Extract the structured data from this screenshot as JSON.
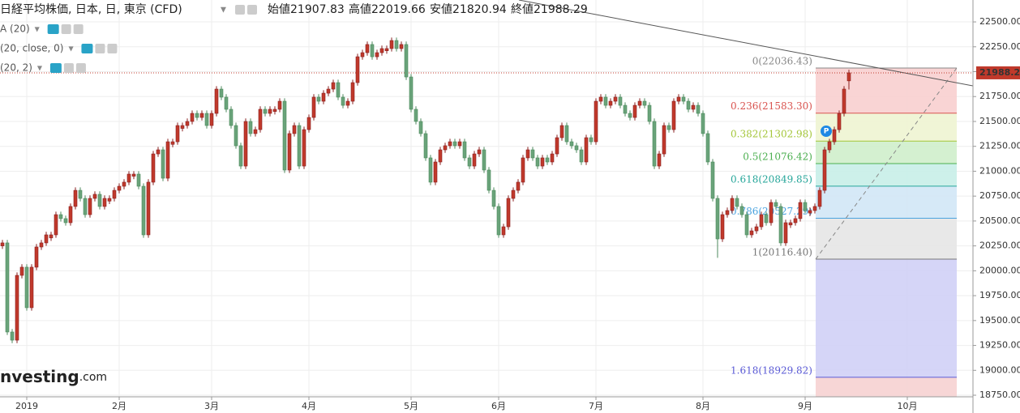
{
  "chart_data": {
    "type": "candlestick",
    "title": "日経平均株価, 日本, 日, 東京 (CFD)",
    "ohlc_labels": [
      "始値",
      "高値",
      "安値",
      "終値"
    ],
    "indicators": [
      "A (20)",
      "(20, close, 0)",
      "(20, 2)"
    ],
    "logo": [
      "nvesting",
      ".com"
    ],
    "up_color": "#c0392b",
    "down_color": "#6aa37a",
    "xlim": [
      -0.5,
      199.5
    ],
    "xticks": [
      {
        "value": 5,
        "label": "2019"
      },
      {
        "value": 24,
        "label": "2月"
      },
      {
        "value": 43,
        "label": "3月"
      },
      {
        "value": 63,
        "label": "4月"
      },
      {
        "value": 84,
        "label": "5月"
      },
      {
        "value": 102,
        "label": "6月"
      },
      {
        "value": 122,
        "label": "7月"
      },
      {
        "value": 144,
        "label": "8月"
      },
      {
        "value": 165,
        "label": "9月"
      },
      {
        "value": 186,
        "label": "10月"
      }
    ],
    "ylim": [
      18734,
      22720
    ],
    "yticks": [
      {
        "value": 18750,
        "label": "18750.00"
      },
      {
        "value": 19000,
        "label": "19000.00"
      },
      {
        "value": 19250,
        "label": "19250.00"
      },
      {
        "value": 19500,
        "label": "19500.00"
      },
      {
        "value": 19750,
        "label": "19750.00"
      },
      {
        "value": 20000,
        "label": "20000.00"
      },
      {
        "value": 20250,
        "label": "20250.00"
      },
      {
        "value": 20500,
        "label": "20500.00"
      },
      {
        "value": 20750,
        "label": "20750.00"
      },
      {
        "value": 21000,
        "label": "21000.00"
      },
      {
        "value": 21250,
        "label": "21250.00"
      },
      {
        "value": 21500,
        "label": "21500.00"
      },
      {
        "value": 21750,
        "label": "21750.00"
      },
      {
        "value": 22000,
        "label": "22000.00"
      },
      {
        "value": 22250,
        "label": "22250.00"
      },
      {
        "value": 22500,
        "label": "22500.00"
      }
    ],
    "grid": true,
    "fibonacci": [
      {
        "label": "0(22036.43)",
        "value": 22036.43,
        "color": "#888888",
        "fill": "#f8cfcf"
      },
      {
        "label": "0.236(21583.30)",
        "value": 21583.3,
        "color": "#d9534f",
        "fill": "#eef4d2"
      },
      {
        "label": "0.382(21302.98)",
        "value": 21302.98,
        "color": "#a4c639",
        "fill": "#cfeecb"
      },
      {
        "label": "0.5(21076.42)",
        "value": 21076.42,
        "color": "#4caf50",
        "fill": "#c8eee8"
      },
      {
        "label": "0.618(20849.85)",
        "value": 20849.85,
        "color": "#26a69a",
        "fill": "#d2e7f6"
      },
      {
        "label": "0.786(20527.29)",
        "value": 20527.29,
        "color": "#4aa3df",
        "fill": "#e6e6e6"
      },
      {
        "label": "1(20116.40)",
        "value": 20116.4,
        "color": "#777777",
        "fill": "#d0d0f6"
      },
      {
        "label": "1.618(18929.82)",
        "value": 18929.82,
        "color": "#5a5ad6",
        "fill": "#f6d2d2"
      }
    ],
    "ohlc": [
      [
        20250,
        20310,
        20220,
        20280
      ],
      [
        20280,
        20310,
        19355,
        19385
      ],
      [
        19385,
        19415,
        19273,
        19303
      ],
      [
        19303,
        19984,
        19273,
        19954
      ],
      [
        19954,
        20066,
        19924,
        20036
      ],
      [
        20036,
        20066,
        19599,
        19629
      ],
      [
        19629,
        20066,
        19599,
        20036
      ],
      [
        20036,
        20269,
        20006,
        20239
      ],
      [
        20239,
        20310,
        20209,
        20280
      ],
      [
        20280,
        20391,
        20250,
        20361
      ],
      [
        20330,
        20391,
        20300,
        20361
      ],
      [
        20361,
        20594,
        20331,
        20564
      ],
      [
        20564,
        20594,
        20494,
        20524
      ],
      [
        20524,
        20554,
        20453,
        20483
      ],
      [
        20483,
        20676,
        20453,
        20646
      ],
      [
        20646,
        20838,
        20616,
        20808
      ],
      [
        20808,
        20838,
        20697,
        20727
      ],
      [
        20727,
        20757,
        20534,
        20564
      ],
      [
        20564,
        20757,
        20534,
        20727
      ],
      [
        20727,
        20798,
        20697,
        20768
      ],
      [
        20768,
        20798,
        20616,
        20646
      ],
      [
        20646,
        20757,
        20616,
        20727
      ],
      [
        20700,
        20757,
        20670,
        20727
      ],
      [
        20727,
        20838,
        20697,
        20808
      ],
      [
        20808,
        20879,
        20778,
        20849
      ],
      [
        20849,
        20920,
        20819,
        20890
      ],
      [
        20890,
        21001,
        20860,
        20971
      ],
      [
        20950,
        21001,
        20920,
        20971
      ],
      [
        20971,
        21001,
        20819,
        20849
      ],
      [
        20849,
        20879,
        20331,
        20361
      ],
      [
        20361,
        20920,
        20331,
        20890
      ],
      [
        20890,
        21204,
        20860,
        21174
      ],
      [
        21174,
        21245,
        21144,
        21215
      ],
      [
        21215,
        21245,
        20900,
        20930
      ],
      [
        20930,
        21326,
        20900,
        21296
      ],
      [
        21270,
        21326,
        21240,
        21296
      ],
      [
        21296,
        21489,
        21266,
        21459
      ],
      [
        21430,
        21489,
        21400,
        21459
      ],
      [
        21459,
        21530,
        21429,
        21500
      ],
      [
        21500,
        21611,
        21470,
        21581
      ],
      [
        21581,
        21611,
        21510,
        21540
      ],
      [
        21540,
        21611,
        21510,
        21581
      ],
      [
        21581,
        21611,
        21429,
        21459
      ],
      [
        21459,
        21611,
        21429,
        21581
      ],
      [
        21581,
        21855,
        21551,
        21825
      ],
      [
        21825,
        21855,
        21714,
        21744
      ],
      [
        21744,
        21774,
        21592,
        21622
      ],
      [
        21622,
        21652,
        21429,
        21459
      ],
      [
        21459,
        21489,
        21226,
        21256
      ],
      [
        21256,
        21286,
        21022,
        21052
      ],
      [
        21052,
        21530,
        21022,
        21500
      ],
      [
        21500,
        21530,
        21348,
        21378
      ],
      [
        21378,
        21448,
        21348,
        21418
      ],
      [
        21418,
        21652,
        21388,
        21622
      ],
      [
        21622,
        21652,
        21551,
        21581
      ],
      [
        21581,
        21652,
        21551,
        21622
      ],
      [
        21600,
        21652,
        21570,
        21622
      ],
      [
        21622,
        21733,
        21592,
        21703
      ],
      [
        21703,
        21733,
        20982,
        21012
      ],
      [
        21012,
        21408,
        20982,
        21378
      ],
      [
        21378,
        21489,
        21348,
        21459
      ],
      [
        21459,
        21489,
        21022,
        21052
      ],
      [
        21052,
        21448,
        21022,
        21418
      ],
      [
        21418,
        21570,
        21388,
        21540
      ],
      [
        21540,
        21774,
        21510,
        21744
      ],
      [
        21744,
        21774,
        21673,
        21703
      ],
      [
        21703,
        21814,
        21673,
        21784
      ],
      [
        21784,
        21855,
        21754,
        21825
      ],
      [
        21825,
        21920,
        21795,
        21890
      ],
      [
        21890,
        21920,
        21714,
        21744
      ],
      [
        21744,
        21774,
        21632,
        21662
      ],
      [
        21662,
        21733,
        21632,
        21703
      ],
      [
        21703,
        21920,
        21673,
        21890
      ],
      [
        21890,
        22180,
        21860,
        22150
      ],
      [
        22150,
        22221,
        22120,
        22191
      ],
      [
        22191,
        22303,
        22161,
        22273
      ],
      [
        22273,
        22303,
        22120,
        22150
      ],
      [
        22150,
        22221,
        22120,
        22191
      ],
      [
        22191,
        22262,
        22161,
        22232
      ],
      [
        22210,
        22262,
        22180,
        22232
      ],
      [
        22232,
        22343,
        22202,
        22313
      ],
      [
        22313,
        22343,
        22202,
        22232
      ],
      [
        22232,
        22303,
        22202,
        22273
      ],
      [
        22273,
        22303,
        21917,
        21947
      ],
      [
        21947,
        21977,
        21592,
        21622
      ],
      [
        21622,
        21652,
        21470,
        21500
      ],
      [
        21500,
        21530,
        21348,
        21378
      ],
      [
        21378,
        21408,
        21104,
        21134
      ],
      [
        21134,
        21164,
        20860,
        20890
      ],
      [
        20890,
        21123,
        20860,
        21093
      ],
      [
        21093,
        21245,
        21063,
        21215
      ],
      [
        21215,
        21286,
        21185,
        21256
      ],
      [
        21256,
        21326,
        21226,
        21296
      ],
      [
        21296,
        21326,
        21226,
        21256
      ],
      [
        21256,
        21326,
        21226,
        21296
      ],
      [
        21296,
        21326,
        21104,
        21134
      ],
      [
        21134,
        21164,
        21022,
        21052
      ],
      [
        21052,
        21204,
        21022,
        21174
      ],
      [
        21174,
        21245,
        21144,
        21215
      ],
      [
        21215,
        21245,
        20982,
        21012
      ],
      [
        21012,
        21042,
        20778,
        20808
      ],
      [
        20808,
        20838,
        20616,
        20646
      ],
      [
        20646,
        20676,
        20331,
        20361
      ],
      [
        20361,
        20472,
        20331,
        20442
      ],
      [
        20442,
        20757,
        20412,
        20727
      ],
      [
        20727,
        20838,
        20697,
        20808
      ],
      [
        20808,
        20920,
        20778,
        20890
      ],
      [
        20890,
        21164,
        20860,
        21134
      ],
      [
        21134,
        21245,
        21104,
        21215
      ],
      [
        21215,
        21245,
        21104,
        21134
      ],
      [
        21134,
        21164,
        21022,
        21052
      ],
      [
        21052,
        21164,
        21022,
        21134
      ],
      [
        21134,
        21164,
        21063,
        21093
      ],
      [
        21093,
        21204,
        21063,
        21174
      ],
      [
        21174,
        21367,
        21144,
        21337
      ],
      [
        21337,
        21489,
        21307,
        21459
      ],
      [
        21459,
        21489,
        21266,
        21296
      ],
      [
        21296,
        21326,
        21226,
        21256
      ],
      [
        21256,
        21286,
        21185,
        21215
      ],
      [
        21215,
        21245,
        21063,
        21093
      ],
      [
        21093,
        21367,
        21063,
        21337
      ],
      [
        21337,
        21367,
        21266,
        21296
      ],
      [
        21296,
        21733,
        21266,
        21703
      ],
      [
        21703,
        21774,
        21673,
        21744
      ],
      [
        21744,
        21774,
        21632,
        21662
      ],
      [
        21662,
        21733,
        21632,
        21703
      ],
      [
        21703,
        21774,
        21673,
        21744
      ],
      [
        21744,
        21774,
        21632,
        21662
      ],
      [
        21662,
        21692,
        21551,
        21581
      ],
      [
        21581,
        21611,
        21510,
        21540
      ],
      [
        21540,
        21692,
        21510,
        21662
      ],
      [
        21662,
        21733,
        21632,
        21703
      ],
      [
        21703,
        21733,
        21632,
        21662
      ],
      [
        21662,
        21692,
        21470,
        21500
      ],
      [
        21500,
        21530,
        21022,
        21052
      ],
      [
        21052,
        21204,
        21022,
        21174
      ],
      [
        21174,
        21489,
        21144,
        21459
      ],
      [
        21459,
        21489,
        21388,
        21418
      ],
      [
        21418,
        21733,
        21388,
        21703
      ],
      [
        21703,
        21774,
        21673,
        21744
      ],
      [
        21744,
        21774,
        21673,
        21703
      ],
      [
        21703,
        21733,
        21592,
        21622
      ],
      [
        21622,
        21692,
        21592,
        21662
      ],
      [
        21662,
        21692,
        21551,
        21581
      ],
      [
        21581,
        21611,
        21348,
        21378
      ],
      [
        21378,
        21408,
        21063,
        21093
      ],
      [
        21093,
        21123,
        20697,
        20727
      ],
      [
        20727,
        20757,
        20130,
        20320
      ],
      [
        20320,
        20594,
        20290,
        20564
      ],
      [
        20564,
        20635,
        20534,
        20605
      ],
      [
        20605,
        20757,
        20575,
        20727
      ],
      [
        20727,
        20757,
        20616,
        20646
      ],
      [
        20646,
        20676,
        20534,
        20564
      ],
      [
        20564,
        20594,
        20331,
        20361
      ],
      [
        20361,
        20431,
        20331,
        20401
      ],
      [
        20401,
        20472,
        20371,
        20442
      ],
      [
        20442,
        20594,
        20412,
        20564
      ],
      [
        20564,
        20594,
        20453,
        20483
      ],
      [
        20483,
        20716,
        20453,
        20686
      ],
      [
        20686,
        20716,
        20616,
        20646
      ],
      [
        20646,
        20676,
        20250,
        20280
      ],
      [
        20280,
        20513,
        20250,
        20483
      ],
      [
        20460,
        20513,
        20430,
        20483
      ],
      [
        20483,
        20554,
        20453,
        20524
      ],
      [
        20524,
        20716,
        20494,
        20686
      ],
      [
        20686,
        20716,
        20575,
        20605
      ],
      [
        20580,
        20635,
        20550,
        20605
      ],
      [
        20605,
        20676,
        20575,
        20646
      ],
      [
        20646,
        20838,
        20616,
        20808
      ],
      [
        20808,
        21245,
        20778,
        21215
      ],
      [
        21215,
        21326,
        21185,
        21296
      ],
      [
        21296,
        21448,
        21266,
        21418
      ],
      [
        21418,
        21611,
        21388,
        21581
      ],
      [
        21581,
        21855,
        21551,
        21825
      ],
      [
        21907.83,
        22019.66,
        21820.94,
        21988.29
      ]
    ]
  }
}
